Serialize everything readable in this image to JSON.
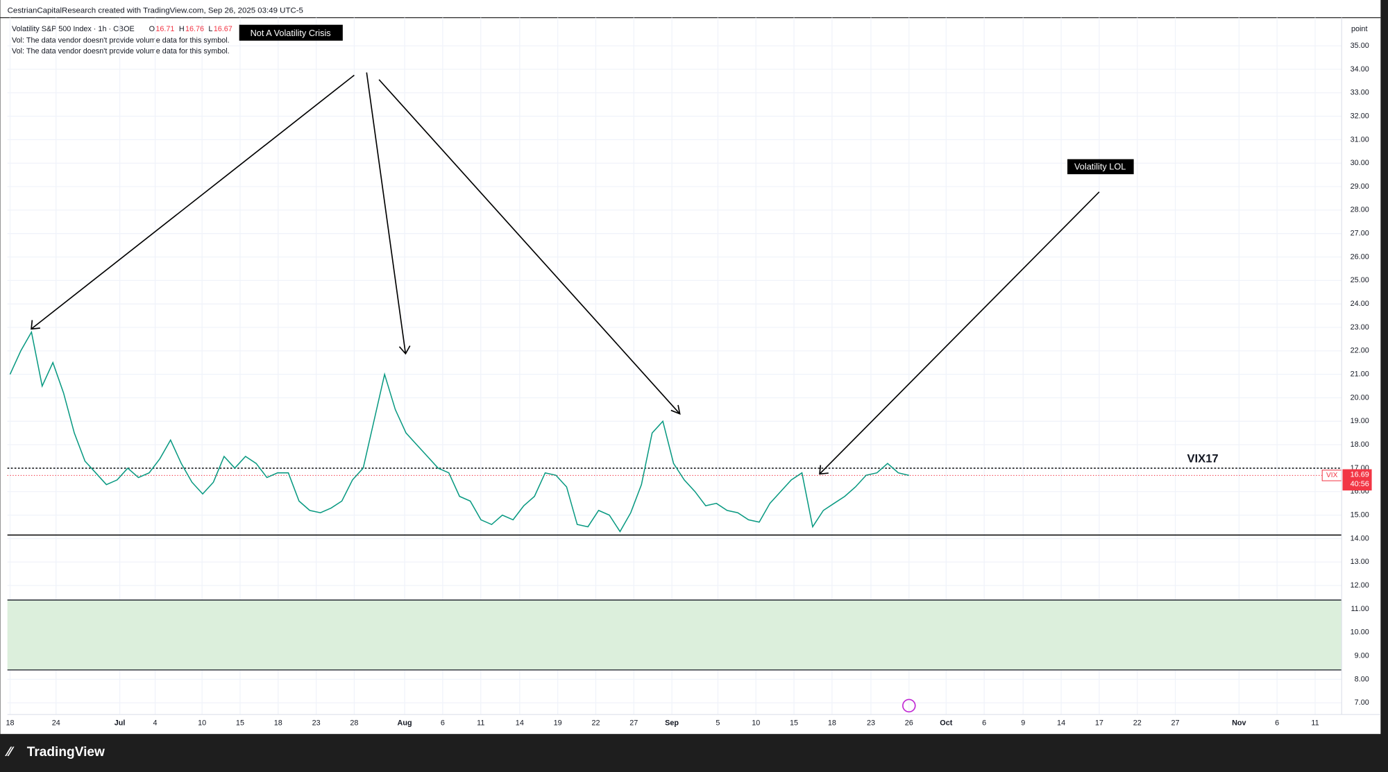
{
  "header": {
    "credit": "CestrianCapitalResearch created with TradingView.com, Sep 26, 2025 03:49 UTC-5"
  },
  "legend": {
    "symbol": "Volatility S&P 500 Index · 1h · CBOE",
    "ohlc": [
      {
        "label": "O",
        "value": "16.71"
      },
      {
        "label": "H",
        "value": "16.76"
      },
      {
        "label": "L",
        "value": "16.67"
      }
    ],
    "vol_notes": [
      "Vol: The data vendor doesn't provide volume data for this symbol.",
      "Vol: The data vendor doesn't provide volume data for this symbol."
    ]
  },
  "footer": {
    "brand": "TradingView"
  },
  "chart_data": {
    "type": "line",
    "series": [
      {
        "name": "VIX",
        "color": "#089981",
        "values": [
          21.0,
          22.0,
          22.8,
          20.5,
          21.5,
          20.2,
          18.5,
          17.3,
          16.8,
          16.3,
          16.5,
          17.0,
          16.6,
          16.8,
          17.4,
          18.2,
          17.2,
          16.4,
          15.9,
          16.4,
          17.5,
          17.0,
          17.5,
          17.2,
          16.6,
          16.8,
          16.8,
          15.6,
          15.2,
          15.1,
          15.3,
          15.6,
          16.5,
          17.0,
          19.0,
          21.0,
          19.5,
          18.5,
          18.0,
          17.5,
          17.0,
          16.8,
          15.8,
          15.6,
          14.8,
          14.6,
          15.0,
          14.8,
          15.4,
          15.8,
          16.8,
          16.7,
          16.2,
          14.6,
          14.5,
          15.2,
          15.0,
          14.3,
          15.1,
          16.3,
          18.5,
          19.0,
          17.2,
          16.5,
          16.0,
          15.4,
          15.5,
          15.2,
          15.1,
          14.8,
          14.7,
          15.5,
          16.0,
          16.5,
          16.8,
          14.5,
          15.2,
          15.5,
          15.8,
          16.2,
          16.7,
          16.8,
          17.2,
          16.8,
          16.69
        ]
      }
    ],
    "x_labels": [
      "18",
      "24",
      "Jul",
      "4",
      "10",
      "15",
      "18",
      "23",
      "28",
      "Aug",
      "6",
      "11",
      "14",
      "19",
      "22",
      "27",
      "Sep",
      "5",
      "10",
      "15",
      "18",
      "23",
      "26",
      "Oct",
      "6",
      "9",
      "14",
      "17",
      "22",
      "27",
      "Nov",
      "6",
      "11"
    ],
    "ylim": [
      6.5,
      36.2
    ],
    "yticks": [
      {
        "value": 7,
        "label": "7.00"
      },
      {
        "value": 8,
        "label": "8.00"
      },
      {
        "value": 9,
        "label": "9.00"
      },
      {
        "value": 10,
        "label": "10.00"
      },
      {
        "value": 11,
        "label": "11.00"
      },
      {
        "value": 12,
        "label": "12.00"
      },
      {
        "value": 13,
        "label": "13.00"
      },
      {
        "value": 14,
        "label": "14.00"
      },
      {
        "value": 15,
        "label": "15.00"
      },
      {
        "value": 16,
        "label": "16.00"
      },
      {
        "value": 17,
        "label": "17.00"
      },
      {
        "value": 18,
        "label": "18.00"
      },
      {
        "value": 19,
        "label": "19.00"
      },
      {
        "value": 20,
        "label": "20.00"
      },
      {
        "value": 21,
        "label": "21.00"
      },
      {
        "value": 22,
        "label": "22.00"
      },
      {
        "value": 23,
        "label": "23.00"
      },
      {
        "value": 24,
        "label": "24.00"
      },
      {
        "value": 25,
        "label": "25.00"
      },
      {
        "value": 26,
        "label": "26.00"
      },
      {
        "value": 27,
        "label": "27.00"
      },
      {
        "value": 28,
        "label": "28.00"
      },
      {
        "value": 29,
        "label": "29.00"
      },
      {
        "value": 30,
        "label": "30.00"
      },
      {
        "value": 31,
        "label": "31.00"
      },
      {
        "value": 32,
        "label": "32.00"
      },
      {
        "value": 33,
        "label": "33.00"
      },
      {
        "value": 34,
        "label": "34.00"
      },
      {
        "value": 35,
        "label": "35.00"
      }
    ],
    "y_unit": "point",
    "grid": true,
    "last_price": 16.69,
    "last_price_color": "#f23645",
    "countdown": "40:56",
    "levels": [
      {
        "value": 17,
        "label": "VIX17",
        "style": "dotted"
      },
      {
        "value": 14.15,
        "style": "solid"
      }
    ],
    "zone": {
      "from": 8.4,
      "to": 11.38,
      "color": "#dcefdc"
    },
    "annotations": [
      "Not A Volatility Crisis",
      "Volatility LOL"
    ]
  }
}
